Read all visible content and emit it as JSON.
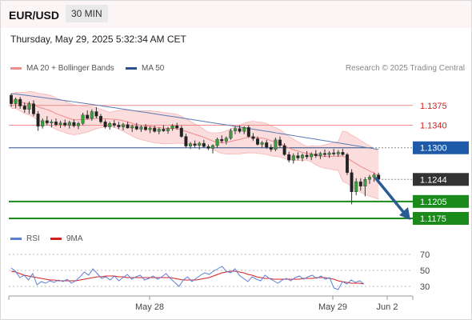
{
  "header": {
    "pair": "EUR/USD",
    "timeframe": "30 MIN"
  },
  "timestamp": "Thursday, May 29, 2025 5:32:34 AM CET",
  "legend": [
    {
      "label": "MA 20 + Bollinger Bands",
      "color": "#f08a8a"
    },
    {
      "label": "MA 50",
      "color": "#2b4f8c"
    }
  ],
  "credit": "Research © 2025 Trading Central",
  "rsi_legend": [
    {
      "label": "RSI",
      "color": "#5b7fd6"
    },
    {
      "label": "9MA",
      "color": "#d42020"
    }
  ],
  "colors": {
    "up": "#3aa03a",
    "down": "#222222",
    "resistance": "#f08a8a",
    "pivot": "#2b4f8c",
    "support": "#1a8a1a",
    "arrow": "#2b5b94",
    "band": "#f9d2d2"
  },
  "chart_data": [
    {
      "type": "candlestick",
      "ylim": [
        1.1158,
        1.142
      ],
      "x_ticks": [
        "May 28",
        "May 29",
        "Jun 2"
      ],
      "levels": [
        {
          "value": 1.1375,
          "label": "1.1375",
          "kind": "resistance"
        },
        {
          "value": 1.134,
          "label": "1.1340",
          "kind": "resistance"
        },
        {
          "value": 1.13,
          "label": "1.1300",
          "kind": "pivot"
        },
        {
          "value": 1.1244,
          "label": "1.1244",
          "kind": "last"
        },
        {
          "value": 1.1205,
          "label": "1.1205",
          "kind": "support"
        },
        {
          "value": 1.1175,
          "label": "1.1175",
          "kind": "support"
        }
      ],
      "candles": [
        [
          1.1393,
          1.1396,
          1.1372,
          1.1378
        ],
        [
          1.1378,
          1.1389,
          1.137,
          1.1386
        ],
        [
          1.1386,
          1.139,
          1.1369,
          1.1374
        ],
        [
          1.1374,
          1.138,
          1.1362,
          1.1368
        ],
        [
          1.1368,
          1.1382,
          1.136,
          1.1378
        ],
        [
          1.1378,
          1.1384,
          1.1356,
          1.136
        ],
        [
          1.136,
          1.1365,
          1.133,
          1.1338
        ],
        [
          1.1338,
          1.1352,
          1.1334,
          1.1348
        ],
        [
          1.1348,
          1.1356,
          1.134,
          1.1344
        ],
        [
          1.1344,
          1.135,
          1.1336,
          1.1346
        ],
        [
          1.1346,
          1.1352,
          1.1338,
          1.1341
        ],
        [
          1.1341,
          1.1348,
          1.1335,
          1.1344
        ],
        [
          1.1344,
          1.135,
          1.1337,
          1.134
        ],
        [
          1.134,
          1.1348,
          1.1334,
          1.1345
        ],
        [
          1.1345,
          1.135,
          1.1336,
          1.1339
        ],
        [
          1.1339,
          1.1346,
          1.1333,
          1.1343
        ],
        [
          1.1343,
          1.1362,
          1.134,
          1.1358
        ],
        [
          1.1358,
          1.1366,
          1.135,
          1.1352
        ],
        [
          1.1352,
          1.1368,
          1.1348,
          1.1364
        ],
        [
          1.1364,
          1.1372,
          1.1352,
          1.1356
        ],
        [
          1.1356,
          1.136,
          1.1343,
          1.1346
        ],
        [
          1.1346,
          1.135,
          1.1334,
          1.1337
        ],
        [
          1.1337,
          1.1346,
          1.1332,
          1.1343
        ],
        [
          1.1343,
          1.1349,
          1.1336,
          1.134
        ],
        [
          1.134,
          1.1346,
          1.1333,
          1.1337
        ],
        [
          1.1337,
          1.1344,
          1.1331,
          1.1341
        ],
        [
          1.1341,
          1.1346,
          1.1334,
          1.1335
        ],
        [
          1.1335,
          1.1341,
          1.1328,
          1.1338
        ],
        [
          1.1338,
          1.1344,
          1.1331,
          1.1333
        ],
        [
          1.1333,
          1.134,
          1.1328,
          1.1337
        ],
        [
          1.1337,
          1.1342,
          1.133,
          1.1332
        ],
        [
          1.1332,
          1.1338,
          1.1326,
          1.1335
        ],
        [
          1.1335,
          1.1339,
          1.1327,
          1.1329
        ],
        [
          1.1329,
          1.1336,
          1.1324,
          1.1333
        ],
        [
          1.1333,
          1.134,
          1.1328,
          1.133
        ],
        [
          1.133,
          1.1337,
          1.1325,
          1.1334
        ],
        [
          1.1334,
          1.1342,
          1.133,
          1.1339
        ],
        [
          1.1339,
          1.1344,
          1.1332,
          1.1335
        ],
        [
          1.1335,
          1.1339,
          1.1318,
          1.132
        ],
        [
          1.132,
          1.1325,
          1.13,
          1.1303
        ],
        [
          1.1303,
          1.131,
          1.1298,
          1.1307
        ],
        [
          1.1307,
          1.1313,
          1.13,
          1.1304
        ],
        [
          1.1304,
          1.1311,
          1.1297,
          1.1308
        ],
        [
          1.1308,
          1.1314,
          1.13,
          1.1302
        ],
        [
          1.1302,
          1.1306,
          1.1296,
          1.1299
        ],
        [
          1.1299,
          1.1306,
          1.129,
          1.1304
        ],
        [
          1.1304,
          1.1318,
          1.13,
          1.1315
        ],
        [
          1.1315,
          1.1322,
          1.1308,
          1.1312
        ],
        [
          1.1312,
          1.132,
          1.1306,
          1.1317
        ],
        [
          1.1317,
          1.1334,
          1.1314,
          1.133
        ],
        [
          1.133,
          1.1338,
          1.1324,
          1.1334
        ],
        [
          1.1334,
          1.134,
          1.1326,
          1.1329
        ],
        [
          1.1329,
          1.1338,
          1.1324,
          1.1336
        ],
        [
          1.1336,
          1.134,
          1.1318,
          1.132
        ],
        [
          1.132,
          1.1326,
          1.1312,
          1.1316
        ],
        [
          1.1316,
          1.132,
          1.1304,
          1.1306
        ],
        [
          1.1306,
          1.1312,
          1.13,
          1.1309
        ],
        [
          1.1309,
          1.1314,
          1.1298,
          1.1301
        ],
        [
          1.1301,
          1.1306,
          1.1293,
          1.1297
        ],
        [
          1.1297,
          1.1318,
          1.1294,
          1.1314
        ],
        [
          1.1314,
          1.132,
          1.13,
          1.1304
        ],
        [
          1.1304,
          1.1308,
          1.1286,
          1.1288
        ],
        [
          1.1288,
          1.1293,
          1.1274,
          1.1278
        ],
        [
          1.1278,
          1.129,
          1.1272,
          1.1286
        ],
        [
          1.1286,
          1.1292,
          1.1278,
          1.1282
        ],
        [
          1.1282,
          1.129,
          1.1276,
          1.1287
        ],
        [
          1.1287,
          1.1294,
          1.128,
          1.1284
        ],
        [
          1.1284,
          1.1292,
          1.1278,
          1.1289
        ],
        [
          1.1289,
          1.1296,
          1.1282,
          1.1286
        ],
        [
          1.1286,
          1.1293,
          1.128,
          1.129
        ],
        [
          1.129,
          1.1297,
          1.1284,
          1.1288
        ],
        [
          1.1288,
          1.1294,
          1.1282,
          1.1291
        ],
        [
          1.1291,
          1.1298,
          1.1286,
          1.1289
        ],
        [
          1.1289,
          1.1296,
          1.1284,
          1.1292
        ],
        [
          1.1292,
          1.1298,
          1.1286,
          1.1288
        ],
        [
          1.1288,
          1.1291,
          1.1252,
          1.1256
        ],
        [
          1.1256,
          1.1262,
          1.12,
          1.1222
        ],
        [
          1.1222,
          1.1246,
          1.1216,
          1.124
        ],
        [
          1.124,
          1.1246,
          1.1224,
          1.1232
        ],
        [
          1.1232,
          1.1248,
          1.1214,
          1.1244
        ],
        [
          1.1244,
          1.1252,
          1.1236,
          1.1248
        ],
        [
          1.1248,
          1.1256,
          1.124,
          1.1252
        ],
        [
          1.1252,
          1.1256,
          1.124,
          1.1244
        ]
      ],
      "ma20_first": 1.1392,
      "ma20_last": 1.1262,
      "ma50_first": 1.1396,
      "ma50_last": 1.1297,
      "forecast_to": 1.1175
    },
    {
      "type": "line",
      "ylim": [
        20,
        75
      ],
      "y_ticks": [
        70,
        50,
        30
      ],
      "series": [
        {
          "name": "RSI",
          "values": [
            53,
            49,
            41,
            44,
            38,
            46,
            32,
            36,
            34,
            37,
            35,
            38,
            36,
            39,
            34,
            37,
            42,
            48,
            44,
            52,
            46,
            40,
            42,
            38,
            43,
            37,
            41,
            45,
            39,
            42,
            44,
            38,
            40,
            43,
            39,
            42,
            46,
            40,
            35,
            30,
            38,
            42,
            36,
            40,
            44,
            47,
            45,
            49,
            52,
            55,
            49,
            47,
            52,
            44,
            40,
            36,
            42,
            39,
            37,
            44,
            40,
            37,
            34,
            38,
            40,
            37,
            41,
            43,
            39,
            42,
            44,
            40,
            43,
            39,
            41,
            28,
            26,
            36,
            33,
            38,
            35,
            37,
            33
          ]
        },
        {
          "name": "9MA",
          "values": [
            49,
            48,
            46,
            44,
            43,
            42,
            41,
            40,
            39,
            38,
            38,
            37,
            37,
            37,
            37,
            37,
            38,
            39,
            40,
            41,
            42,
            42,
            43,
            43,
            43,
            42,
            42,
            41,
            41,
            41,
            41,
            41,
            41,
            41,
            41,
            41,
            41,
            41,
            40,
            39,
            38,
            38,
            38,
            38,
            39,
            40,
            41,
            43,
            45,
            47,
            48,
            49,
            49,
            48,
            47,
            45,
            44,
            42,
            41,
            40,
            40,
            39,
            39,
            39,
            39,
            39,
            39,
            39,
            40,
            40,
            40,
            41,
            41,
            41,
            40,
            39,
            37,
            36,
            35,
            34,
            34,
            34,
            33
          ]
        }
      ]
    }
  ]
}
